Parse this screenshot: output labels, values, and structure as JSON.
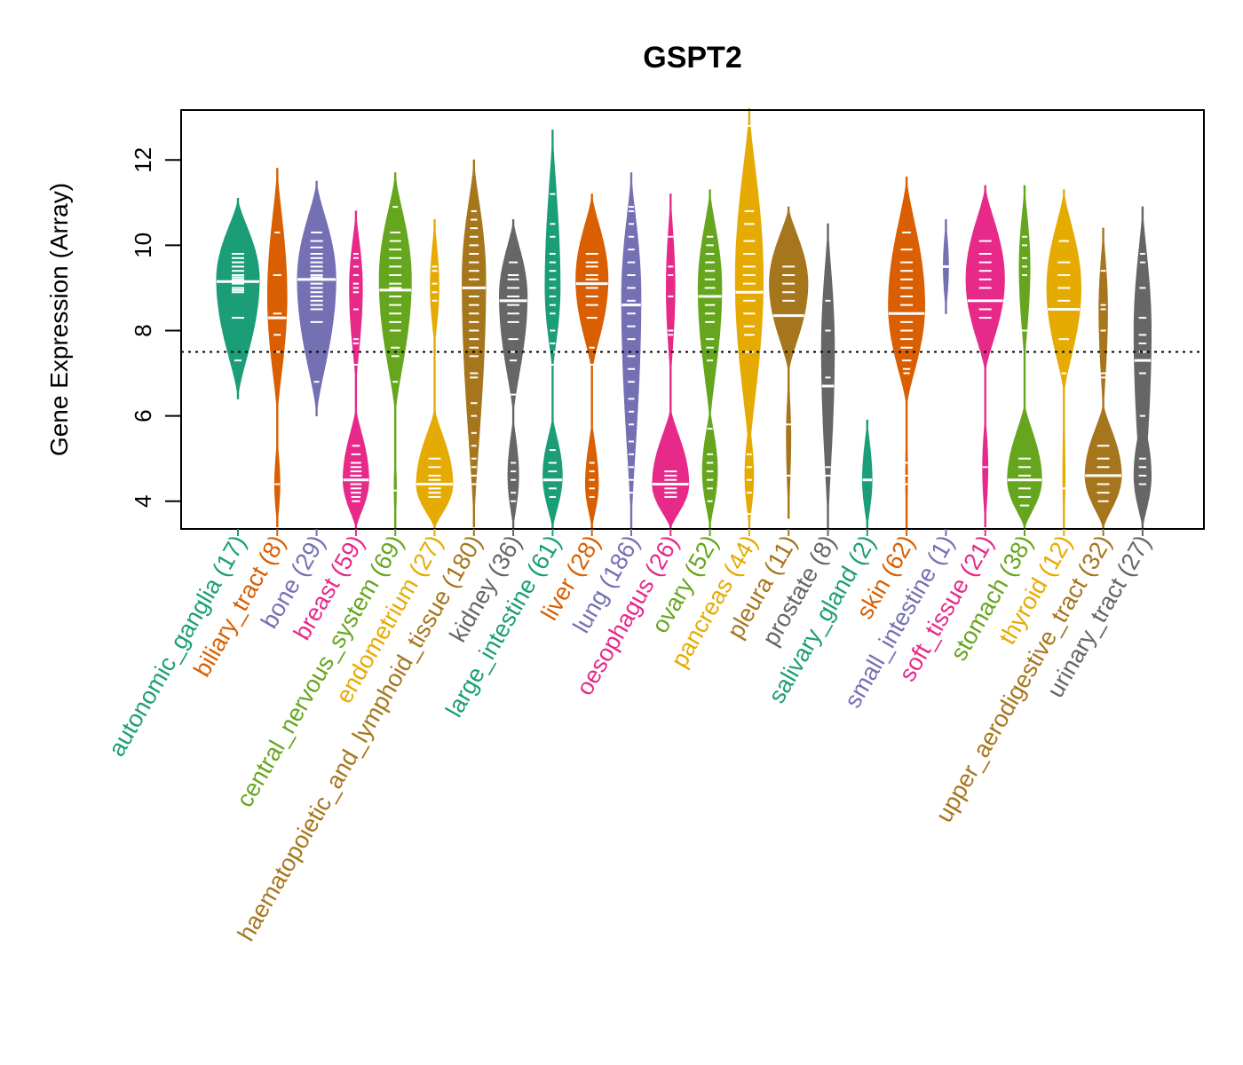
{
  "chart_data": {
    "type": "violin",
    "title": "GSPT2",
    "xlabel": "",
    "ylabel": "Gene Expression (Array)",
    "ylim": [
      3.35,
      13.17
    ],
    "yticks": [
      4,
      6,
      8,
      10,
      12
    ],
    "grid": false,
    "legend": "none",
    "reference_line": {
      "y": 7.5,
      "style": "dotted",
      "color": "#000000"
    },
    "palette": [
      "#1B9E77",
      "#D95F02",
      "#7570B3",
      "#E7298A",
      "#66A61E",
      "#E6AB02",
      "#A6761D",
      "#666666"
    ],
    "categories": [
      {
        "name": "autonomic_ganglia",
        "n": 17,
        "label": "autonomic_ganglia (17)",
        "color": "#1B9E77",
        "median": 9.15,
        "modes": [
          {
            "center": 9.2,
            "low": 6.4,
            "high": 11.1,
            "width": 1.0
          }
        ],
        "points": [
          9.8,
          9.7,
          9.6,
          9.5,
          9.4,
          9.3,
          9.25,
          9.2,
          9.1,
          9.0,
          8.95,
          8.9,
          8.3,
          7.3
        ]
      },
      {
        "name": "biliary_tract",
        "n": 8,
        "label": "biliary_tract (8)",
        "color": "#D95F02",
        "median": 8.3,
        "modes": [
          {
            "center": 8.8,
            "low": 6.0,
            "high": 11.8,
            "width": 0.45
          },
          {
            "center": 4.4,
            "low": 3.4,
            "high": 5.5,
            "width": 0.12
          }
        ],
        "points": [
          10.3,
          9.3,
          8.4,
          8.3,
          7.9,
          7.5,
          4.4
        ]
      },
      {
        "name": "bone",
        "n": 29,
        "label": "bone (29)",
        "color": "#7570B3",
        "median": 9.2,
        "modes": [
          {
            "center": 9.2,
            "low": 6.0,
            "high": 11.5,
            "width": 0.9
          }
        ],
        "points": [
          10.3,
          10.1,
          9.95,
          9.8,
          9.7,
          9.6,
          9.5,
          9.4,
          9.3,
          9.25,
          9.2,
          9.1,
          9.0,
          8.9,
          8.8,
          8.7,
          8.6,
          8.5,
          8.2,
          6.8
        ]
      },
      {
        "name": "breast",
        "n": 59,
        "label": "breast (59)",
        "color": "#E7298A",
        "median": 4.5,
        "modes": [
          {
            "center": 9.0,
            "low": 6.7,
            "high": 10.8,
            "width": 0.3
          },
          {
            "center": 4.5,
            "low": 3.35,
            "high": 6.2,
            "width": 0.6
          }
        ],
        "points": [
          9.8,
          9.7,
          9.5,
          9.3,
          9.1,
          9.0,
          8.9,
          8.5,
          7.8,
          7.7,
          7.2,
          5.3,
          5.1,
          4.9,
          4.8,
          4.7,
          4.6,
          4.5,
          4.4,
          4.3,
          4.2,
          4.1,
          4.0
        ]
      },
      {
        "name": "central_nervous_system",
        "n": 69,
        "label": "central_nervous_system (69)",
        "color": "#66A61E",
        "median": 8.95,
        "modes": [
          {
            "center": 9.2,
            "low": 6.0,
            "high": 11.7,
            "width": 0.75
          },
          {
            "center": 4.3,
            "low": 3.35,
            "high": 5.2,
            "width": 0.05
          }
        ],
        "points": [
          10.9,
          10.3,
          10.1,
          9.9,
          9.7,
          9.5,
          9.3,
          9.1,
          9.0,
          8.95,
          8.8,
          8.6,
          8.4,
          8.2,
          8.0,
          7.6,
          7.4,
          6.8,
          4.25
        ]
      },
      {
        "name": "endometrium",
        "n": 27,
        "label": "endometrium (27)",
        "color": "#E6AB02",
        "median": 4.4,
        "modes": [
          {
            "center": 9.0,
            "low": 7.6,
            "high": 10.6,
            "width": 0.2
          },
          {
            "center": 4.4,
            "low": 3.35,
            "high": 6.2,
            "width": 0.85
          }
        ],
        "points": [
          9.5,
          9.4,
          9.1,
          8.9,
          8.7,
          5.0,
          4.8,
          4.6,
          4.5,
          4.4,
          4.3,
          4.2,
          4.1
        ]
      },
      {
        "name": "haematopoietic_and_lymphoid_tissue",
        "n": 180,
        "label": "haematopoietic_and_lymphoid_tissue (180)",
        "color": "#A6761D",
        "median": 9.0,
        "modes": [
          {
            "center": 9.2,
            "low": 3.4,
            "high": 12.0,
            "width": 0.55
          }
        ],
        "points": [
          10.8,
          10.6,
          10.4,
          10.2,
          10.0,
          9.8,
          9.6,
          9.4,
          9.2,
          9.0,
          8.8,
          8.6,
          8.4,
          8.2,
          8.0,
          7.8,
          7.6,
          7.4,
          7.0,
          6.9,
          6.3,
          6.0,
          5.6,
          5.3,
          5.0,
          4.8,
          4.6,
          4.4
        ]
      },
      {
        "name": "kidney",
        "n": 36,
        "label": "kidney (36)",
        "color": "#666666",
        "median": 8.7,
        "modes": [
          {
            "center": 8.8,
            "low": 6.0,
            "high": 10.6,
            "width": 0.65
          },
          {
            "center": 4.6,
            "low": 3.35,
            "high": 6.0,
            "width": 0.25
          }
        ],
        "points": [
          9.6,
          9.3,
          9.2,
          9.0,
          8.8,
          8.6,
          8.4,
          8.2,
          7.8,
          7.5,
          7.3,
          6.5,
          4.9,
          4.7,
          4.5,
          4.2,
          4.0
        ]
      },
      {
        "name": "large_intestine",
        "n": 61,
        "label": "large_intestine (61)",
        "color": "#1B9E77",
        "median": 4.5,
        "modes": [
          {
            "center": 9.0,
            "low": 7.0,
            "high": 12.7,
            "width": 0.35
          },
          {
            "center": 4.6,
            "low": 3.35,
            "high": 6.0,
            "width": 0.45
          }
        ],
        "points": [
          11.2,
          10.5,
          10.2,
          9.8,
          9.6,
          9.4,
          9.2,
          9.0,
          8.8,
          8.6,
          8.4,
          8.0,
          7.7,
          7.5,
          7.2,
          5.2,
          4.9,
          4.7,
          4.5,
          4.3,
          4.1
        ]
      },
      {
        "name": "liver",
        "n": 28,
        "label": "liver (28)",
        "color": "#D95F02",
        "median": 9.1,
        "modes": [
          {
            "center": 9.2,
            "low": 7.0,
            "high": 11.2,
            "width": 0.75
          },
          {
            "center": 4.4,
            "low": 3.35,
            "high": 5.9,
            "width": 0.3
          }
        ],
        "points": [
          9.8,
          9.6,
          9.5,
          9.3,
          9.2,
          9.0,
          8.8,
          8.6,
          8.3,
          7.6,
          7.2,
          4.9,
          4.7,
          4.5,
          4.3,
          4.1
        ]
      },
      {
        "name": "lung",
        "n": 186,
        "label": "lung (186)",
        "color": "#7570B3",
        "median": 8.6,
        "modes": [
          {
            "center": 8.8,
            "low": 3.35,
            "high": 11.7,
            "width": 0.45
          }
        ],
        "points": [
          10.9,
          10.8,
          10.5,
          10.2,
          9.9,
          9.6,
          9.3,
          9.0,
          8.7,
          8.4,
          8.1,
          7.8,
          7.4,
          7.1,
          6.8,
          6.4,
          6.1,
          5.8,
          5.4,
          5.1,
          4.8,
          4.5,
          4.2
        ]
      },
      {
        "name": "oesophagus",
        "n": 26,
        "label": "oesophagus (26)",
        "color": "#E7298A",
        "median": 4.4,
        "modes": [
          {
            "center": 9.0,
            "low": 6.8,
            "high": 11.2,
            "width": 0.2
          },
          {
            "center": 4.4,
            "low": 3.35,
            "high": 6.2,
            "width": 0.85
          }
        ],
        "points": [
          10.2,
          9.5,
          9.3,
          8.8,
          8.0,
          7.9,
          4.7,
          4.6,
          4.5,
          4.4,
          4.3,
          4.2,
          4.1
        ]
      },
      {
        "name": "ovary",
        "n": 52,
        "label": "ovary (52)",
        "color": "#66A61E",
        "median": 8.8,
        "modes": [
          {
            "center": 9.0,
            "low": 5.8,
            "high": 11.3,
            "width": 0.55
          },
          {
            "center": 4.7,
            "low": 3.35,
            "high": 6.2,
            "width": 0.35
          }
        ],
        "points": [
          10.2,
          10.0,
          9.8,
          9.6,
          9.4,
          9.2,
          9.0,
          8.8,
          8.6,
          8.4,
          8.2,
          7.8,
          7.6,
          7.3,
          5.7,
          5.1,
          4.9,
          4.7,
          4.5,
          4.3,
          4.0
        ]
      },
      {
        "name": "pancreas",
        "n": 44,
        "label": "pancreas (44)",
        "color": "#E6AB02",
        "median": 8.9,
        "modes": [
          {
            "center": 9.2,
            "low": 5.0,
            "high": 13.2,
            "width": 0.65
          },
          {
            "center": 4.6,
            "low": 3.35,
            "high": 6.0,
            "width": 0.2
          }
        ],
        "points": [
          12.8,
          10.8,
          10.5,
          10.1,
          9.8,
          9.5,
          9.3,
          9.1,
          8.9,
          8.7,
          8.4,
          8.1,
          7.9,
          7.5,
          5.1,
          4.8,
          4.5,
          4.2,
          3.7
        ]
      },
      {
        "name": "pleura",
        "n": 11,
        "label": "pleura (11)",
        "color": "#A6761D",
        "median": 8.35,
        "modes": [
          {
            "center": 9.1,
            "low": 7.0,
            "high": 10.9,
            "width": 0.9
          },
          {
            "center": 5.5,
            "low": 3.6,
            "high": 7.0,
            "width": 0.1
          }
        ],
        "points": [
          9.5,
          9.3,
          9.1,
          8.9,
          8.7,
          8.35,
          5.8,
          4.6
        ]
      },
      {
        "name": "prostate",
        "n": 8,
        "label": "prostate (8)",
        "color": "#666666",
        "median": 6.7,
        "modes": [
          {
            "center": 7.6,
            "low": 3.35,
            "high": 10.5,
            "width": 0.3
          }
        ],
        "points": [
          8.7,
          8.0,
          6.9,
          6.7,
          4.8,
          4.6
        ]
      },
      {
        "name": "salivary_gland",
        "n": 2,
        "label": "salivary_gland (2)",
        "color": "#1B9E77",
        "median": 4.5,
        "modes": [
          {
            "center": 4.5,
            "low": 3.35,
            "high": 5.9,
            "width": 0.22
          }
        ],
        "points": [
          4.5
        ]
      },
      {
        "name": "skin",
        "n": 62,
        "label": "skin (62)",
        "color": "#D95F02",
        "median": 8.4,
        "modes": [
          {
            "center": 8.6,
            "low": 6.2,
            "high": 11.6,
            "width": 0.85
          },
          {
            "center": 4.6,
            "low": 3.35,
            "high": 6.2,
            "width": 0.04
          }
        ],
        "points": [
          10.3,
          9.9,
          9.6,
          9.4,
          9.2,
          9.0,
          8.8,
          8.6,
          8.4,
          8.2,
          8.0,
          7.8,
          7.6,
          7.3,
          7.1,
          7.0,
          4.9,
          4.6,
          4.4
        ]
      },
      {
        "name": "small_intestine",
        "n": 1,
        "label": "small_intestine (1)",
        "color": "#7570B3",
        "median": 9.5,
        "modes": [
          {
            "center": 9.5,
            "low": 8.4,
            "high": 10.6,
            "width": 0.12
          }
        ],
        "points": [
          9.5
        ]
      },
      {
        "name": "soft_tissue",
        "n": 21,
        "label": "soft_tissue (21)",
        "color": "#E7298A",
        "median": 8.7,
        "modes": [
          {
            "center": 9.2,
            "low": 7.0,
            "high": 11.4,
            "width": 0.9
          },
          {
            "center": 4.8,
            "low": 3.4,
            "high": 6.1,
            "width": 0.12
          }
        ],
        "points": [
          10.1,
          9.8,
          9.6,
          9.4,
          9.2,
          9.0,
          8.7,
          8.5,
          8.3,
          4.8
        ]
      },
      {
        "name": "stomach",
        "n": 38,
        "label": "stomach (38)",
        "color": "#66A61E",
        "median": 4.5,
        "modes": [
          {
            "center": 9.5,
            "low": 7.2,
            "high": 11.4,
            "width": 0.25
          },
          {
            "center": 4.5,
            "low": 3.35,
            "high": 6.3,
            "width": 0.8
          }
        ],
        "points": [
          10.2,
          10.0,
          9.7,
          9.5,
          9.3,
          8.0,
          5.0,
          4.8,
          4.6,
          4.5,
          4.3,
          4.1,
          3.9
        ]
      },
      {
        "name": "thyroid",
        "n": 12,
        "label": "thyroid (12)",
        "color": "#E6AB02",
        "median": 8.5,
        "modes": [
          {
            "center": 9.0,
            "low": 6.5,
            "high": 11.3,
            "width": 0.8
          },
          {
            "center": 4.6,
            "low": 3.35,
            "high": 6.5,
            "width": 0.05
          }
        ],
        "points": [
          10.1,
          9.6,
          9.3,
          9.0,
          8.7,
          8.5,
          7.8,
          7.0,
          4.3
        ]
      },
      {
        "name": "upper_aerodigestive_tract",
        "n": 32,
        "label": "upper_aerodigestive_tract (32)",
        "color": "#A6761D",
        "median": 4.6,
        "modes": [
          {
            "center": 8.5,
            "low": 6.0,
            "high": 10.4,
            "width": 0.2
          },
          {
            "center": 4.6,
            "low": 3.35,
            "high": 6.3,
            "width": 0.85
          }
        ],
        "points": [
          9.4,
          8.6,
          8.5,
          8.0,
          7.0,
          6.9,
          5.3,
          5.0,
          4.8,
          4.6,
          4.4,
          4.2,
          4.0
        ]
      },
      {
        "name": "urinary_tract",
        "n": 27,
        "label": "urinary_tract (27)",
        "color": "#666666",
        "median": 7.3,
        "modes": [
          {
            "center": 8.0,
            "low": 3.35,
            "high": 10.9,
            "width": 0.4
          },
          {
            "center": 4.6,
            "low": 3.35,
            "high": 6.2,
            "width": 0.4
          }
        ],
        "points": [
          9.8,
          9.6,
          9.0,
          8.3,
          7.9,
          7.7,
          7.5,
          7.3,
          7.0,
          6.0,
          5.0,
          4.8,
          4.6,
          4.4
        ]
      }
    ]
  }
}
